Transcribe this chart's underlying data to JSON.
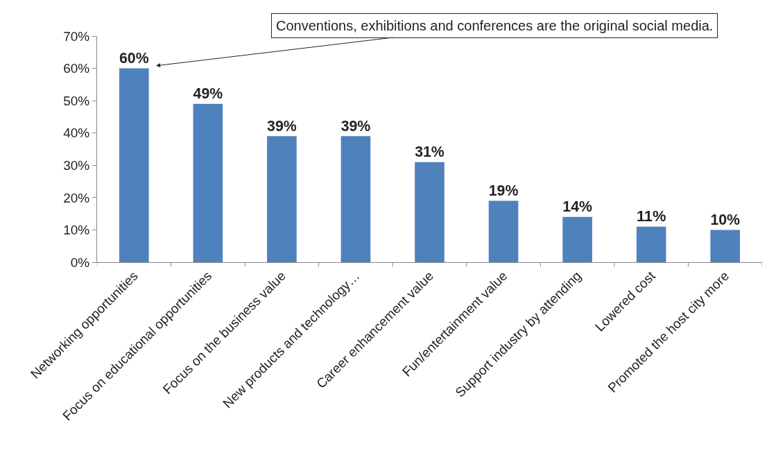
{
  "chart_data": {
    "type": "bar",
    "categories": [
      "Networking opportunities",
      "Focus on educational opportunities",
      "Focus on the business value",
      "New products and technology…",
      "Career enhancement value",
      "Fun/entertainment value",
      "Support industry by attending",
      "Lowered cost",
      "Promoted the host city more"
    ],
    "values": [
      60,
      49,
      39,
      39,
      31,
      19,
      14,
      11,
      10
    ],
    "value_labels": [
      "60%",
      "49%",
      "39%",
      "39%",
      "31%",
      "19%",
      "14%",
      "11%",
      "10%"
    ],
    "color": "#4f81bd",
    "ylim": [
      0,
      70
    ],
    "yticks": [
      {
        "value": 0,
        "label": "0%"
      },
      {
        "value": 10,
        "label": "10%"
      },
      {
        "value": 20,
        "label": "20%"
      },
      {
        "value": 30,
        "label": "30%"
      },
      {
        "value": 40,
        "label": "40%"
      },
      {
        "value": 50,
        "label": "50%"
      },
      {
        "value": 60,
        "label": "60%"
      },
      {
        "value": 70,
        "label": "70%"
      }
    ],
    "grid": false,
    "annotations": [
      {
        "text": "Conventions, exhibitions and conferences are the original social media.",
        "x": "Networking opportunities",
        "y": 60
      }
    ]
  }
}
